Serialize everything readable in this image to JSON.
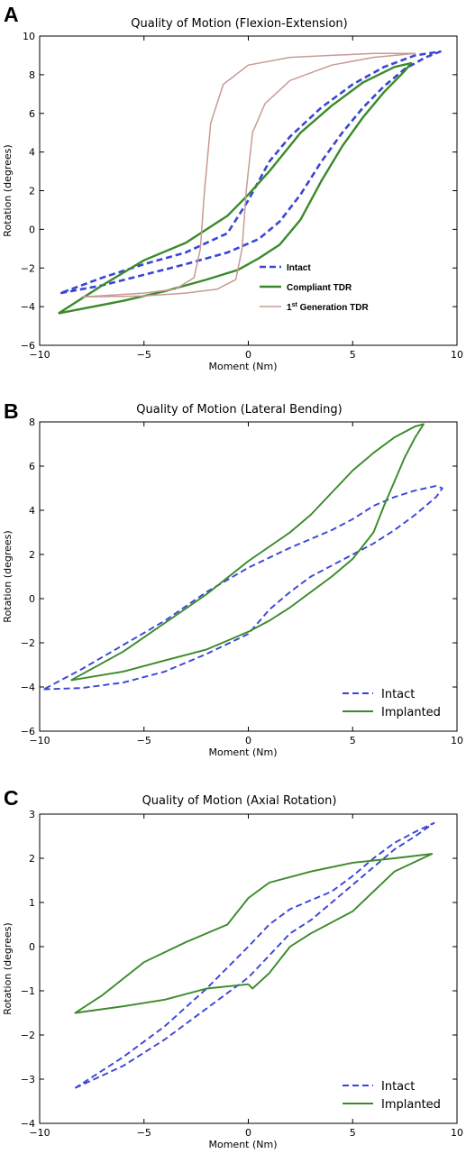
{
  "chart_data": [
    {
      "panel_label": "A",
      "type": "line",
      "title": "Quality of Motion (Flexion-Extension)",
      "xlabel": "Moment (Nm)",
      "ylabel": "Rotation (degrees)",
      "xlim": [
        -10,
        10
      ],
      "ylim": [
        -6,
        10
      ],
      "xticks": [
        "−10",
        "−5",
        "0",
        "5",
        "10"
      ],
      "yticks": [
        "−6",
        "−4",
        "−2",
        "0",
        "2",
        "4",
        "6",
        "8",
        "10"
      ],
      "legend_position": "lower-right",
      "legend_style": "small-bold",
      "series": [
        {
          "name": "Intact",
          "color": "#3a45d6",
          "dash": true,
          "width": 2.6,
          "points": [
            [
              -9,
              -3.3
            ],
            [
              -7,
              -2.9
            ],
            [
              -5,
              -2.35
            ],
            [
              -3,
              -1.8
            ],
            [
              -1,
              -1.2
            ],
            [
              0.5,
              -0.5
            ],
            [
              1.5,
              0.4
            ],
            [
              2.5,
              1.8
            ],
            [
              3.5,
              3.5
            ],
            [
              4.5,
              5.0
            ],
            [
              5.5,
              6.3
            ],
            [
              6.5,
              7.4
            ],
            [
              7.5,
              8.3
            ],
            [
              8.5,
              8.9
            ],
            [
              9.2,
              9.2
            ],
            [
              8.0,
              9.0
            ],
            [
              6.5,
              8.4
            ],
            [
              5.0,
              7.5
            ],
            [
              3.5,
              6.3
            ],
            [
              2.0,
              4.8
            ],
            [
              1.0,
              3.5
            ],
            [
              0,
              1.5
            ],
            [
              -1,
              -0.2
            ],
            [
              -3,
              -1.2
            ],
            [
              -5,
              -1.8
            ],
            [
              -7,
              -2.5
            ],
            [
              -9,
              -3.3
            ]
          ]
        },
        {
          "name": "Compliant TDR",
          "color": "#3a8a2a",
          "dash": false,
          "width": 2.4,
          "points": [
            [
              -9.1,
              -4.35
            ],
            [
              -6,
              -3.7
            ],
            [
              -4,
              -3.2
            ],
            [
              -2,
              -2.6
            ],
            [
              -0.5,
              -2.1
            ],
            [
              0.5,
              -1.5
            ],
            [
              1.5,
              -0.8
            ],
            [
              2.5,
              0.5
            ],
            [
              3.5,
              2.5
            ],
            [
              4.5,
              4.3
            ],
            [
              5.5,
              5.8
            ],
            [
              6.5,
              7.1
            ],
            [
              7.5,
              8.2
            ],
            [
              7.8,
              8.6
            ],
            [
              7.0,
              8.4
            ],
            [
              5.5,
              7.6
            ],
            [
              4.0,
              6.4
            ],
            [
              2.5,
              5.0
            ],
            [
              1.0,
              3.0
            ],
            [
              0,
              1.8
            ],
            [
              -1,
              0.7
            ],
            [
              -3,
              -0.7
            ],
            [
              -5,
              -1.6
            ],
            [
              -7,
              -2.9
            ],
            [
              -9.1,
              -4.35
            ]
          ]
        },
        {
          "name": "1st Generation TDR",
          "legend_superscript": "st",
          "color": "#c89a94",
          "dash": false,
          "width": 1.5,
          "points": [
            [
              -8,
              -3.5
            ],
            [
              -5,
              -3.45
            ],
            [
              -3,
              -3.3
            ],
            [
              -1.5,
              -3.1
            ],
            [
              -0.6,
              -2.6
            ],
            [
              -0.3,
              -1.0
            ],
            [
              -0.1,
              2.0
            ],
            [
              0.2,
              5.0
            ],
            [
              0.8,
              6.5
            ],
            [
              2,
              7.7
            ],
            [
              4,
              8.5
            ],
            [
              6,
              8.9
            ],
            [
              8,
              9.1
            ],
            [
              6,
              9.1
            ],
            [
              4,
              9.0
            ],
            [
              2,
              8.9
            ],
            [
              0,
              8.5
            ],
            [
              -1.2,
              7.5
            ],
            [
              -1.8,
              5.5
            ],
            [
              -2.1,
              2.0
            ],
            [
              -2.3,
              -1.0
            ],
            [
              -2.6,
              -2.5
            ],
            [
              -3.5,
              -3.1
            ],
            [
              -5,
              -3.3
            ],
            [
              -8,
              -3.5
            ]
          ]
        }
      ]
    },
    {
      "panel_label": "B",
      "type": "line",
      "title": "Quality of Motion (Lateral Bending)",
      "xlabel": "Moment (Nm)",
      "ylabel": "Rotation (degrees)",
      "xlim": [
        -10,
        10
      ],
      "ylim": [
        -6,
        8
      ],
      "xticks": [
        "−10",
        "−5",
        "0",
        "5",
        "10"
      ],
      "yticks": [
        "−6",
        "−4",
        "−2",
        "0",
        "2",
        "4",
        "6",
        "8"
      ],
      "legend_position": "lower-right",
      "legend_style": "normal",
      "series": [
        {
          "name": "Intact",
          "color": "#3a45d6",
          "dash": true,
          "width": 1.9,
          "points": [
            [
              -9.8,
              -4.1
            ],
            [
              -8,
              -4.05
            ],
            [
              -6,
              -3.8
            ],
            [
              -4,
              -3.3
            ],
            [
              -2,
              -2.5
            ],
            [
              0,
              -1.6
            ],
            [
              1,
              -0.5
            ],
            [
              2,
              0.3
            ],
            [
              3,
              1.0
            ],
            [
              4,
              1.5
            ],
            [
              5,
              2.0
            ],
            [
              6,
              2.5
            ],
            [
              7,
              3.1
            ],
            [
              8,
              3.8
            ],
            [
              9,
              4.6
            ],
            [
              9.3,
              5.0
            ],
            [
              9.0,
              5.1
            ],
            [
              8,
              4.9
            ],
            [
              7,
              4.6
            ],
            [
              6,
              4.2
            ],
            [
              5,
              3.6
            ],
            [
              4,
              3.1
            ],
            [
              2,
              2.3
            ],
            [
              0,
              1.4
            ],
            [
              -2,
              0.3
            ],
            [
              -4,
              -1.0
            ],
            [
              -6,
              -2.1
            ],
            [
              -8,
              -3.2
            ],
            [
              -9.8,
              -4.1
            ]
          ]
        },
        {
          "name": "Implanted",
          "color": "#3a8a2a",
          "dash": false,
          "width": 1.9,
          "points": [
            [
              -8.5,
              -3.7
            ],
            [
              -6,
              -3.3
            ],
            [
              -4,
              -2.8
            ],
            [
              -2,
              -2.3
            ],
            [
              0,
              -1.5
            ],
            [
              1,
              -1.0
            ],
            [
              2,
              -0.4
            ],
            [
              3,
              0.3
            ],
            [
              4,
              1.0
            ],
            [
              5,
              1.8
            ],
            [
              6,
              3.0
            ],
            [
              6.5,
              4.2
            ],
            [
              7,
              5.3
            ],
            [
              7.5,
              6.4
            ],
            [
              8,
              7.3
            ],
            [
              8.4,
              7.9
            ],
            [
              8.0,
              7.8
            ],
            [
              7,
              7.3
            ],
            [
              6,
              6.6
            ],
            [
              5,
              5.8
            ],
            [
              4,
              4.8
            ],
            [
              3,
              3.8
            ],
            [
              2,
              3.0
            ],
            [
              0,
              1.7
            ],
            [
              -2,
              0.2
            ],
            [
              -4,
              -1.1
            ],
            [
              -6,
              -2.4
            ],
            [
              -8.5,
              -3.7
            ]
          ]
        }
      ]
    },
    {
      "panel_label": "C",
      "type": "line",
      "title": "Quality of Motion (Axial Rotation)",
      "xlabel": "Moment (Nm)",
      "ylabel": "Rotation (degrees)",
      "xlim": [
        -10,
        10
      ],
      "ylim": [
        -4,
        3
      ],
      "xticks": [
        "−10",
        "−5",
        "0",
        "5",
        "10"
      ],
      "yticks": [
        "−4",
        "−3",
        "−2",
        "−1",
        "0",
        "1",
        "2",
        "3"
      ],
      "legend_position": "lower-right",
      "legend_style": "normal",
      "series": [
        {
          "name": "Intact",
          "color": "#3a45d6",
          "dash": true,
          "width": 1.9,
          "points": [
            [
              -8.3,
              -3.2
            ],
            [
              -6,
              -2.7
            ],
            [
              -4,
              -2.1
            ],
            [
              -2,
              -1.4
            ],
            [
              0,
              -0.7
            ],
            [
              1,
              -0.2
            ],
            [
              2,
              0.3
            ],
            [
              3,
              0.6
            ],
            [
              4,
              1.0
            ],
            [
              5,
              1.4
            ],
            [
              6,
              1.8
            ],
            [
              7,
              2.2
            ],
            [
              8,
              2.5
            ],
            [
              8.9,
              2.8
            ],
            [
              8,
              2.6
            ],
            [
              7,
              2.35
            ],
            [
              6,
              2.0
            ],
            [
              5,
              1.6
            ],
            [
              4,
              1.25
            ],
            [
              3,
              1.05
            ],
            [
              2,
              0.85
            ],
            [
              1,
              0.5
            ],
            [
              0,
              0
            ],
            [
              -2,
              -0.95
            ],
            [
              -4,
              -1.8
            ],
            [
              -6,
              -2.5
            ],
            [
              -8.3,
              -3.2
            ]
          ]
        },
        {
          "name": "Implanted",
          "color": "#3a8a2a",
          "dash": false,
          "width": 1.9,
          "points": [
            [
              0,
              -0.85
            ],
            [
              -2,
              -0.95
            ],
            [
              -4,
              -1.2
            ],
            [
              -6,
              -1.35
            ],
            [
              -8.3,
              -1.5
            ],
            [
              -7,
              -1.1
            ],
            [
              -5,
              -0.35
            ],
            [
              -3,
              0.1
            ],
            [
              -1,
              0.5
            ],
            [
              0,
              1.1
            ],
            [
              1,
              1.45
            ],
            [
              3,
              1.7
            ],
            [
              5,
              1.9
            ],
            [
              7,
              2.0
            ],
            [
              8.8,
              2.1
            ],
            [
              7,
              1.7
            ],
            [
              5,
              0.8
            ],
            [
              3,
              0.3
            ],
            [
              2,
              0
            ],
            [
              1,
              -0.6
            ],
            [
              0.2,
              -0.95
            ],
            [
              0,
              -0.85
            ]
          ]
        }
      ]
    }
  ]
}
